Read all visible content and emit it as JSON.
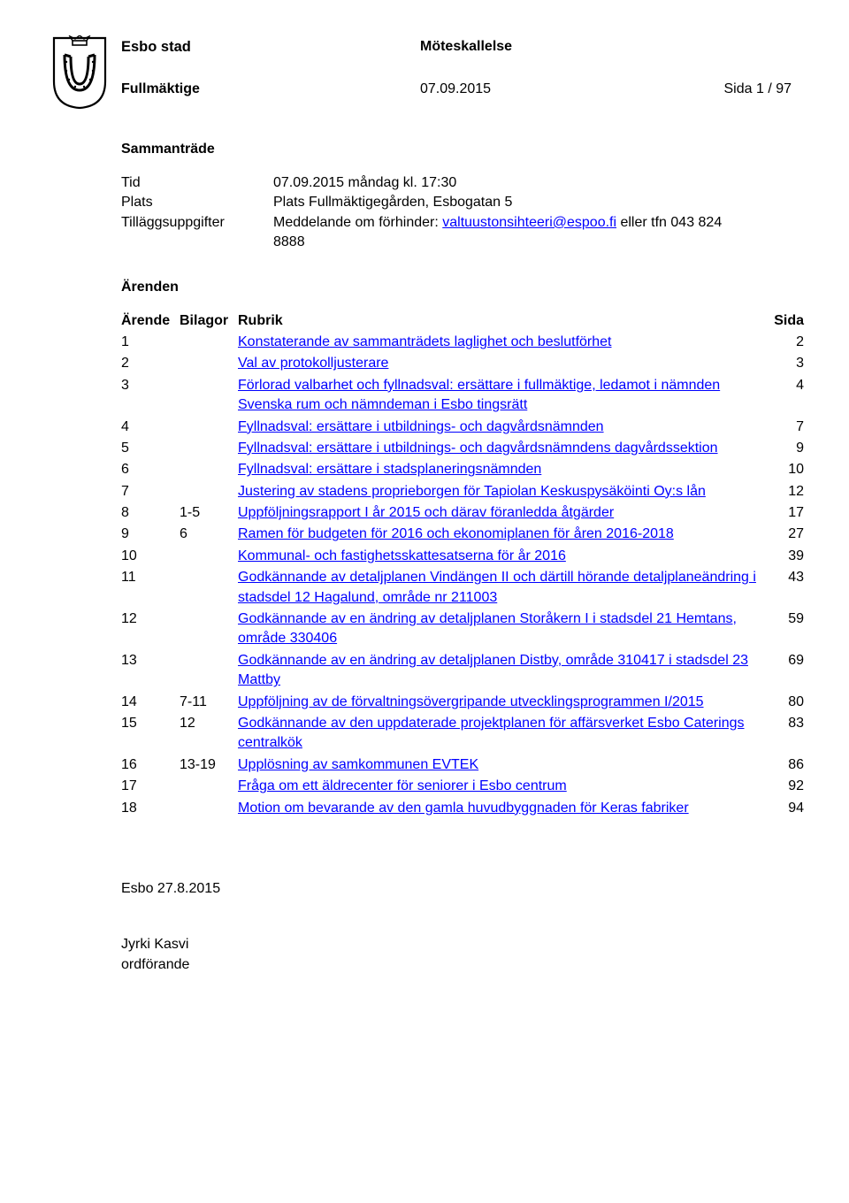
{
  "header": {
    "city": "Esbo stad",
    "doc_type": "Möteskallelse",
    "committee": "Fullmäktige",
    "date": "07.09.2015",
    "page": "Sida 1 / 97"
  },
  "section_meeting": "Sammanträde",
  "meta": {
    "tid_label": "Tid",
    "tid_value": "07.09.2015 måndag kl. 17:30",
    "plats_label": "Plats",
    "plats_value": "Plats Fullmäktigegården, Esbogatan 5",
    "till_label": "Tilläggsuppgifter",
    "till_prefix": "Meddelande om förhinder: ",
    "email": "valtuustonsihteeri@espoo.fi",
    "till_suffix": " eller tfn 043 824 8888"
  },
  "section_agenda": "Ärenden",
  "cols": {
    "num": "Ärende",
    "att": "Bilagor",
    "rub": "Rubrik",
    "pg": "Sida"
  },
  "items": [
    {
      "n": "1",
      "a": "",
      "r": "Konstaterande av sammanträdets laglighet och beslutförhet",
      "p": "2"
    },
    {
      "n": "2",
      "a": "",
      "r": "Val av protokolljusterare",
      "p": "3"
    },
    {
      "n": "3",
      "a": "",
      "r": "Förlorad valbarhet och fyllnadsval: ersättare i fullmäktige, ledamot i nämnden Svenska rum och nämndeman i Esbo tingsrätt",
      "p": "4"
    },
    {
      "n": "4",
      "a": "",
      "r": "Fyllnadsval: ersättare i utbildnings- och dagvårdsnämnden",
      "p": "7"
    },
    {
      "n": "5",
      "a": "",
      "r": "Fyllnadsval: ersättare i utbildnings- och dagvårdsnämndens dagvårdssektion",
      "p": "9"
    },
    {
      "n": "6",
      "a": "",
      "r": "Fyllnadsval: ersättare i stadsplaneringsnämnden",
      "p": "10"
    },
    {
      "n": "7",
      "a": "",
      "r": "Justering av stadens proprieborgen för Tapiolan Keskuspysäköinti Oy:s lån",
      "p": "12"
    },
    {
      "n": "8",
      "a": "1-5",
      "r": "Uppföljningsrapport I år 2015 och därav föranledda åtgärder",
      "p": "17"
    },
    {
      "n": "9",
      "a": "6",
      "r": "Ramen för budgeten för 2016 och ekonomiplanen för åren 2016-2018",
      "p": "27"
    },
    {
      "n": "10",
      "a": "",
      "r": "Kommunal- och fastighetsskattesatserna för år 2016",
      "p": "39"
    },
    {
      "n": "11",
      "a": "",
      "r": "Godkännande av detaljplanen Vindängen II och därtill hörande detaljplaneändring i stadsdel 12 Hagalund, område nr 211003",
      "p": "43"
    },
    {
      "n": "12",
      "a": "",
      "r": "Godkännande av en ändring av detaljplanen Storåkern I i stadsdel 21 Hemtans, område 330406",
      "p": "59"
    },
    {
      "n": "13",
      "a": "",
      "r": "Godkännande av en ändring av detaljplanen Distby, område 310417 i stadsdel 23 Mattby",
      "p": "69"
    },
    {
      "n": "14",
      "a": "7-11",
      "r": "Uppföljning av de förvaltningsövergripande utvecklingsprogrammen I/2015",
      "p": "80"
    },
    {
      "n": "15",
      "a": "12",
      "r": "Godkännande av den uppdaterade projektplanen för affärsverket Esbo Caterings centralkök",
      "p": "83"
    },
    {
      "n": "16",
      "a": "13-19",
      "r": "Upplösning av samkommunen EVTEK",
      "p": "86"
    },
    {
      "n": "17",
      "a": "",
      "r": "Fråga om ett äldrecenter för seniorer i Esbo centrum",
      "p": "92"
    },
    {
      "n": "18",
      "a": "",
      "r": "Motion om bevarande av den gamla huvudbyggnaden för Keras fabriker",
      "p": "94"
    }
  ],
  "footer": {
    "place_date": "Esbo 27.8.2015",
    "sign_name": "Jyrki Kasvi",
    "sign_title": "ordförande"
  },
  "style": {
    "link_color": "#0000ff",
    "text_color": "#000000",
    "bg_color": "#ffffff"
  }
}
